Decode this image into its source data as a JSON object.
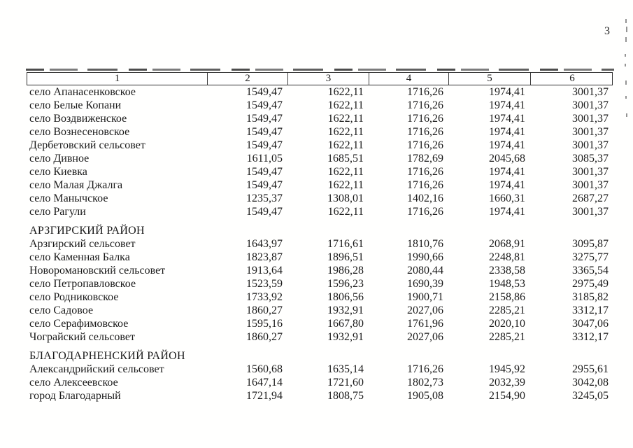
{
  "page": {
    "number": "3"
  },
  "table": {
    "columns": [
      "1",
      "2",
      "3",
      "4",
      "5",
      "6"
    ],
    "sections": [
      {
        "heading": "",
        "rows": [
          {
            "name": "село Апанасенковское",
            "values": [
              "1549,47",
              "1622,11",
              "1716,26",
              "1974,41",
              "3001,37"
            ]
          },
          {
            "name": "село Белые Копани",
            "values": [
              "1549,47",
              "1622,11",
              "1716,26",
              "1974,41",
              "3001,37"
            ]
          },
          {
            "name": "село Воздвиженское",
            "values": [
              "1549,47",
              "1622,11",
              "1716,26",
              "1974,41",
              "3001,37"
            ]
          },
          {
            "name": "село Вознесеновское",
            "values": [
              "1549,47",
              "1622,11",
              "1716,26",
              "1974,41",
              "3001,37"
            ]
          },
          {
            "name": "Дербетовский сельсовет",
            "values": [
              "1549,47",
              "1622,11",
              "1716,26",
              "1974,41",
              "3001,37"
            ]
          },
          {
            "name": "село Дивное",
            "values": [
              "1611,05",
              "1685,51",
              "1782,69",
              "2045,68",
              "3085,37"
            ]
          },
          {
            "name": "село Киевка",
            "values": [
              "1549,47",
              "1622,11",
              "1716,26",
              "1974,41",
              "3001,37"
            ]
          },
          {
            "name": "село Малая Джалга",
            "values": [
              "1549,47",
              "1622,11",
              "1716,26",
              "1974,41",
              "3001,37"
            ]
          },
          {
            "name": "село Манычское",
            "values": [
              "1235,37",
              "1308,01",
              "1402,16",
              "1660,31",
              "2687,27"
            ]
          },
          {
            "name": "село Рагули",
            "values": [
              "1549,47",
              "1622,11",
              "1716,26",
              "1974,41",
              "3001,37"
            ]
          }
        ]
      },
      {
        "heading": "АРЗГИРСКИЙ РАЙОН",
        "rows": [
          {
            "name": "Арзгирский сельсовет",
            "values": [
              "1643,97",
              "1716,61",
              "1810,76",
              "2068,91",
              "3095,87"
            ]
          },
          {
            "name": "село Каменная Балка",
            "values": [
              "1823,87",
              "1896,51",
              "1990,66",
              "2248,81",
              "3275,77"
            ]
          },
          {
            "name": "Новоромановский сельсовет",
            "values": [
              "1913,64",
              "1986,28",
              "2080,44",
              "2338,58",
              "3365,54"
            ]
          },
          {
            "name": "село Петропавловское",
            "values": [
              "1523,59",
              "1596,23",
              "1690,39",
              "1948,53",
              "2975,49"
            ]
          },
          {
            "name": "село Родниковское",
            "values": [
              "1733,92",
              "1806,56",
              "1900,71",
              "2158,86",
              "3185,82"
            ]
          },
          {
            "name": "село Садовое",
            "values": [
              "1860,27",
              "1932,91",
              "2027,06",
              "2285,21",
              "3312,17"
            ]
          },
          {
            "name": "село Серафимовское",
            "values": [
              "1595,16",
              "1667,80",
              "1761,96",
              "2020,10",
              "3047,06"
            ]
          },
          {
            "name": "Чограйский сельсовет",
            "values": [
              "1860,27",
              "1932,91",
              "2027,06",
              "2285,21",
              "3312,17"
            ]
          }
        ]
      },
      {
        "heading": "БЛАГОДАРНЕНСКИЙ РАЙОН",
        "rows": [
          {
            "name": "Александрийский сельсовет",
            "values": [
              "1560,68",
              "1635,14",
              "1716,26",
              "1945,92",
              "2955,61"
            ]
          },
          {
            "name": "село Алексеевское",
            "values": [
              "1647,14",
              "1721,60",
              "1802,73",
              "2032,39",
              "3042,08"
            ]
          },
          {
            "name": "город Благодарный",
            "values": [
              "1721,94",
              "1808,75",
              "1905,08",
              "2154,90",
              "3245,05"
            ]
          }
        ]
      }
    ]
  }
}
